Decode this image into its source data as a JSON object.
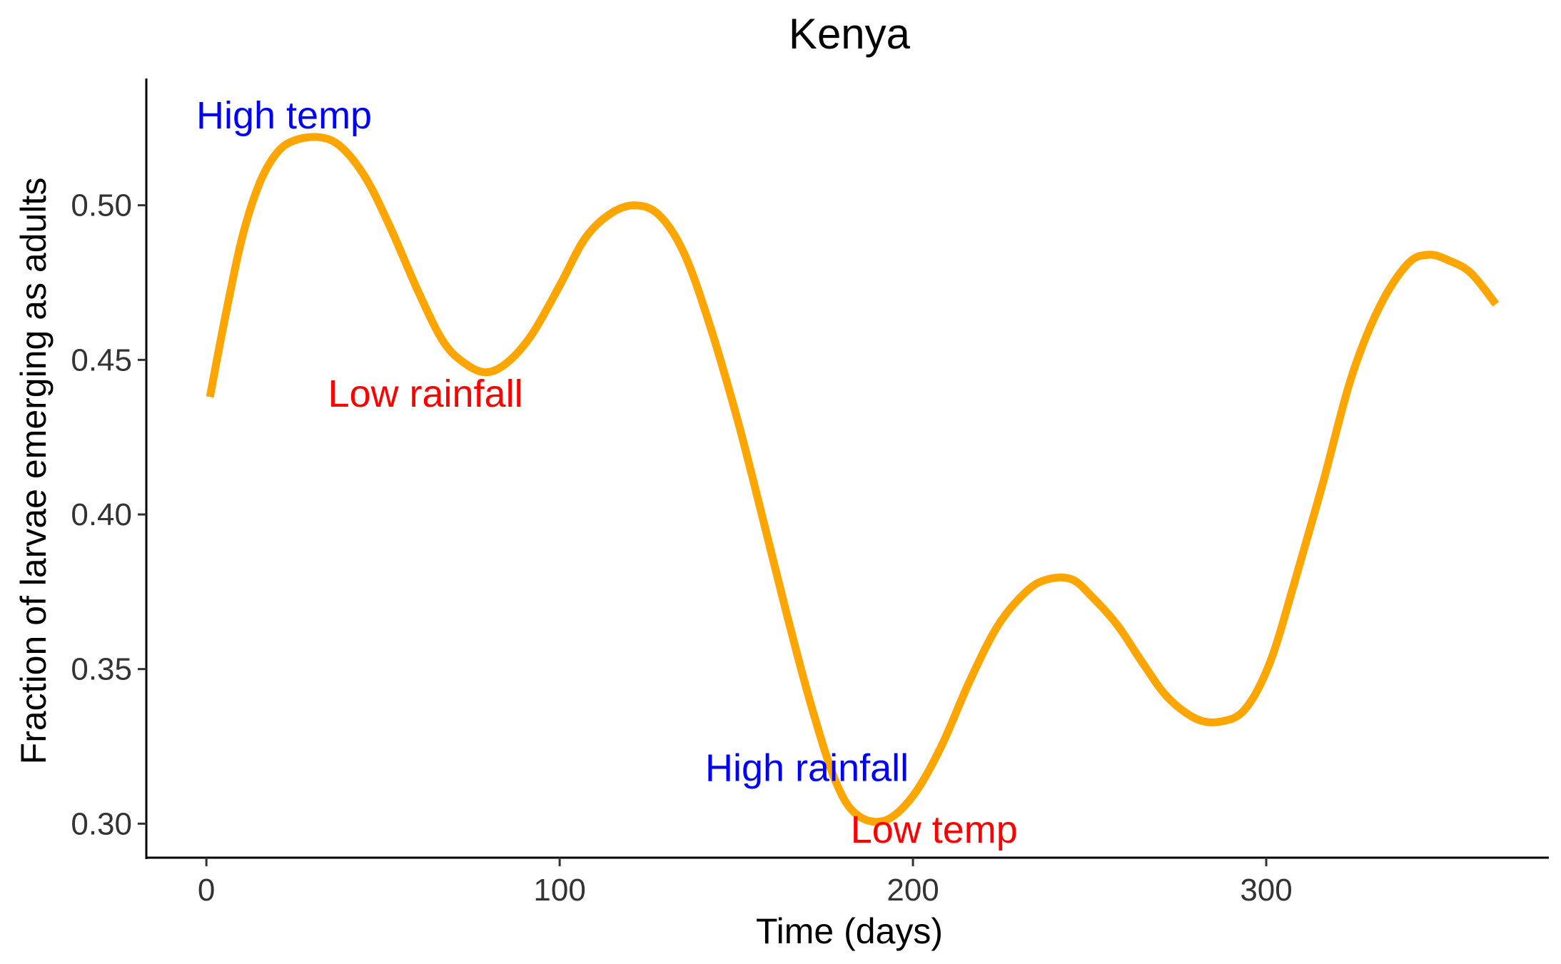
{
  "chart_data": {
    "type": "line",
    "title": "Kenya",
    "xlabel": "Time (days)",
    "ylabel": "Fraction of larvae emerging as adults",
    "xlim": [
      -17,
      380
    ],
    "ylim": [
      0.289,
      0.541
    ],
    "x_ticks": [
      0,
      100,
      200,
      300
    ],
    "y_ticks": [
      0.3,
      0.35,
      0.4,
      0.45,
      0.5
    ],
    "x_tick_labels": [
      "0",
      "100",
      "200",
      "300"
    ],
    "y_tick_labels": [
      "0.30",
      "0.35",
      "0.40",
      "0.45",
      "0.50"
    ],
    "grid": false,
    "legend": "none",
    "series": [
      {
        "color": "#FFA500",
        "x": [
          1,
          5,
          10,
          15,
          20,
          25,
          32,
          38,
          45,
          52,
          60,
          67,
          73,
          79,
          85,
          92,
          100,
          107,
          114,
          121,
          128,
          135,
          142,
          150,
          157,
          164,
          171,
          178,
          184,
          192,
          200,
          208,
          216,
          224,
          232,
          238,
          245,
          251,
          258,
          265,
          272,
          280,
          287,
          294,
          301,
          308,
          316,
          324,
          332,
          340,
          346,
          352,
          358,
          365
        ],
        "y": [
          0.438,
          0.462,
          0.489,
          0.507,
          0.517,
          0.521,
          0.522,
          0.519,
          0.509,
          0.493,
          0.472,
          0.456,
          0.449,
          0.446,
          0.449,
          0.458,
          0.474,
          0.489,
          0.497,
          0.5,
          0.497,
          0.485,
          0.463,
          0.432,
          0.401,
          0.369,
          0.339,
          0.314,
          0.303,
          0.301,
          0.309,
          0.325,
          0.346,
          0.364,
          0.375,
          0.379,
          0.379,
          0.373,
          0.364,
          0.352,
          0.341,
          0.334,
          0.333,
          0.337,
          0.352,
          0.378,
          0.41,
          0.444,
          0.467,
          0.481,
          0.484,
          0.482,
          0.478,
          0.468
        ]
      }
    ],
    "annotations": [
      {
        "text": "High temp",
        "x": 22,
        "y": 0.529,
        "color": "#0000FF"
      },
      {
        "text": "Low rainfall",
        "x": 62,
        "y": 0.439,
        "color": "#FF0000"
      },
      {
        "text": "High rainfall",
        "x": 170,
        "y": 0.318,
        "color": "#0000FF"
      },
      {
        "text": "Low temp",
        "x": 206,
        "y": 0.298,
        "color": "#FF0000"
      }
    ]
  }
}
